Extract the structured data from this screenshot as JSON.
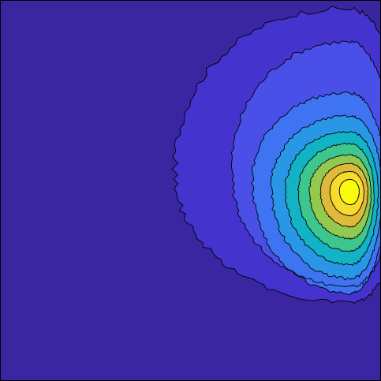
{
  "chart_data": {
    "type": "contour",
    "colormap": "parula",
    "grid": false,
    "axes_visible": false,
    "colors": {
      "background": "#3a26a1",
      "contour_line": "#000000",
      "levels": [
        "#3a26a1",
        "#4433cc",
        "#4a4fe8",
        "#3e74f2",
        "#2a96e6",
        "#13b3c6",
        "#3dc78e",
        "#94c94f",
        "#dfba3a",
        "#f8da2c",
        "#f9fb0e"
      ]
    },
    "levels": [
      0.05,
      0.15,
      0.25,
      0.35,
      0.45,
      0.55,
      0.65,
      0.75,
      0.85,
      0.95
    ],
    "peak": {
      "x": 0.92,
      "y": 0.5,
      "value": 1.0
    },
    "xlim": [
      0,
      1
    ],
    "ylim": [
      0,
      1
    ]
  }
}
